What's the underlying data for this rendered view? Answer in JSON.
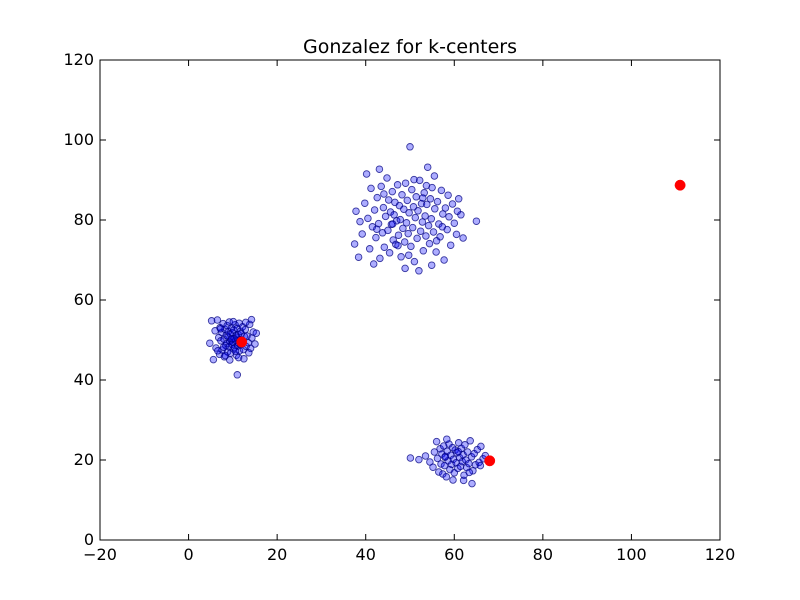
{
  "chart_data": {
    "type": "scatter",
    "title": "Gonzalez for k-centers",
    "xlabel": "",
    "ylabel": "",
    "xlim": [
      -20,
      120
    ],
    "ylim": [
      0,
      120
    ],
    "x_ticks": [
      -20,
      0,
      20,
      40,
      60,
      80,
      100,
      120
    ],
    "y_ticks": [
      0,
      20,
      40,
      60,
      80,
      100,
      120
    ],
    "grid": false,
    "legend": "none",
    "colors": {
      "points": "#0000ff",
      "points_edge": "#000080",
      "centers": "#ff0000"
    },
    "series": [
      {
        "values": [
          [
            4.8,
            49.2
          ],
          [
            5.2,
            54.8
          ],
          [
            5.6,
            45.1
          ],
          [
            6.0,
            52.3
          ],
          [
            6.2,
            48.0
          ],
          [
            6.5,
            55.0
          ],
          [
            6.8,
            50.6
          ],
          [
            7.0,
            46.4
          ],
          [
            7.1,
            53.1
          ],
          [
            7.3,
            49.8
          ],
          [
            7.5,
            51.9
          ],
          [
            7.6,
            47.5
          ],
          [
            7.8,
            54.1
          ],
          [
            8.0,
            50.2
          ],
          [
            8.1,
            45.8
          ],
          [
            8.2,
            52.7
          ],
          [
            8.4,
            48.6
          ],
          [
            8.5,
            51.2
          ],
          [
            8.6,
            49.1
          ],
          [
            8.7,
            53.6
          ],
          [
            8.8,
            47.0
          ],
          [
            8.9,
            50.8
          ],
          [
            9.0,
            52.1
          ],
          [
            9.1,
            48.3
          ],
          [
            9.2,
            54.5
          ],
          [
            9.3,
            49.6
          ],
          [
            9.4,
            51.5
          ],
          [
            9.5,
            46.7
          ],
          [
            9.6,
            50.0
          ],
          [
            9.7,
            53.0
          ],
          [
            9.8,
            48.9
          ],
          [
            9.9,
            51.8
          ],
          [
            10.0,
            49.4
          ],
          [
            10.1,
            47.8
          ],
          [
            10.2,
            52.5
          ],
          [
            10.3,
            50.4
          ],
          [
            10.4,
            48.1
          ],
          [
            10.5,
            53.8
          ],
          [
            10.6,
            49.9
          ],
          [
            10.7,
            51.1
          ],
          [
            10.8,
            46.2
          ],
          [
            10.9,
            50.7
          ],
          [
            11.0,
            52.9
          ],
          [
            11.1,
            48.5
          ],
          [
            11.2,
            51.4
          ],
          [
            11.3,
            49.2
          ],
          [
            11.4,
            54.2
          ],
          [
            11.5,
            47.3
          ],
          [
            11.6,
            50.1
          ],
          [
            11.7,
            52.2
          ],
          [
            11.8,
            48.8
          ],
          [
            11.9,
            51.6
          ],
          [
            12.0,
            49.7
          ],
          [
            12.2,
            53.3
          ],
          [
            12.4,
            47.6
          ],
          [
            12.6,
            50.9
          ],
          [
            12.8,
            52.6
          ],
          [
            13.0,
            48.4
          ],
          [
            13.2,
            51.0
          ],
          [
            13.5,
            49.3
          ],
          [
            13.8,
            53.9
          ],
          [
            14.0,
            47.9
          ],
          [
            14.3,
            50.5
          ],
          [
            14.6,
            52.0
          ],
          [
            15.0,
            49.0
          ],
          [
            15.3,
            51.7
          ],
          [
            11.0,
            41.3
          ],
          [
            12.5,
            45.3
          ],
          [
            9.3,
            45.0
          ],
          [
            14.2,
            55.1
          ],
          [
            7.9,
            48.2
          ],
          [
            8.3,
            46.1
          ],
          [
            10.1,
            54.6
          ],
          [
            11.3,
            45.6
          ],
          [
            12.9,
            54.4
          ],
          [
            13.6,
            46.8
          ],
          [
            6.6,
            47.3
          ],
          [
            7.2,
            52.8
          ],
          [
            9.8,
            50.3
          ],
          [
            10.6,
            47.2
          ],
          [
            37.5,
            74.0
          ],
          [
            37.8,
            82.2
          ],
          [
            38.7,
            79.6
          ],
          [
            39.2,
            76.5
          ],
          [
            39.8,
            84.2
          ],
          [
            40.2,
            91.5
          ],
          [
            40.5,
            80.4
          ],
          [
            40.9,
            72.8
          ],
          [
            41.2,
            87.9
          ],
          [
            41.5,
            78.3
          ],
          [
            41.8,
            69.0
          ],
          [
            42.0,
            82.5
          ],
          [
            42.3,
            75.6
          ],
          [
            42.6,
            85.6
          ],
          [
            42.9,
            79.1
          ],
          [
            43.2,
            70.4
          ],
          [
            43.5,
            88.4
          ],
          [
            43.8,
            76.8
          ],
          [
            44.0,
            83.1
          ],
          [
            44.2,
            73.2
          ],
          [
            44.5,
            80.9
          ],
          [
            44.8,
            90.5
          ],
          [
            45.0,
            77.4
          ],
          [
            45.2,
            85.0
          ],
          [
            45.4,
            71.8
          ],
          [
            45.6,
            82.0
          ],
          [
            45.8,
            78.9
          ],
          [
            46.0,
            87.1
          ],
          [
            46.2,
            75.0
          ],
          [
            46.4,
            81.3
          ],
          [
            46.6,
            84.4
          ],
          [
            46.8,
            73.9
          ],
          [
            47.0,
            79.8
          ],
          [
            47.2,
            88.8
          ],
          [
            47.4,
            76.2
          ],
          [
            47.6,
            83.6
          ],
          [
            47.8,
            80.1
          ],
          [
            48.0,
            70.8
          ],
          [
            48.2,
            86.3
          ],
          [
            48.4,
            77.9
          ],
          [
            48.6,
            82.7
          ],
          [
            48.8,
            74.5
          ],
          [
            49.0,
            89.2
          ],
          [
            49.2,
            79.3
          ],
          [
            49.4,
            84.9
          ],
          [
            49.6,
            76.6
          ],
          [
            49.8,
            81.8
          ],
          [
            50.0,
            98.3
          ],
          [
            50.2,
            73.4
          ],
          [
            50.4,
            87.6
          ],
          [
            50.6,
            78.1
          ],
          [
            50.8,
            83.3
          ],
          [
            51.0,
            69.6
          ],
          [
            51.2,
            80.6
          ],
          [
            51.4,
            85.8
          ],
          [
            51.6,
            75.4
          ],
          [
            51.8,
            82.3
          ],
          [
            52.0,
            67.3
          ],
          [
            52.2,
            89.9
          ],
          [
            52.4,
            77.2
          ],
          [
            52.6,
            84.1
          ],
          [
            52.8,
            79.5
          ],
          [
            53.0,
            72.3
          ],
          [
            53.2,
            86.8
          ],
          [
            53.4,
            81.0
          ],
          [
            53.6,
            76.0
          ],
          [
            53.8,
            83.9
          ],
          [
            54.0,
            93.2
          ],
          [
            54.2,
            78.6
          ],
          [
            54.4,
            74.1
          ],
          [
            54.6,
            85.3
          ],
          [
            54.8,
            80.3
          ],
          [
            55.0,
            88.1
          ],
          [
            55.3,
            77.0
          ],
          [
            55.6,
            82.8
          ],
          [
            55.9,
            72.0
          ],
          [
            56.2,
            84.6
          ],
          [
            56.5,
            79.0
          ],
          [
            56.8,
            75.8
          ],
          [
            57.1,
            87.4
          ],
          [
            57.4,
            81.5
          ],
          [
            57.7,
            70.0
          ],
          [
            58.0,
            83.0
          ],
          [
            58.4,
            77.6
          ],
          [
            58.8,
            80.8
          ],
          [
            59.2,
            73.7
          ],
          [
            59.6,
            84.0
          ],
          [
            60.0,
            79.2
          ],
          [
            60.5,
            76.4
          ],
          [
            61.0,
            85.3
          ],
          [
            61.5,
            81.3
          ],
          [
            62.0,
            75.5
          ],
          [
            65.0,
            79.7
          ],
          [
            38.4,
            70.7
          ],
          [
            43.1,
            92.7
          ],
          [
            55.5,
            91.0
          ],
          [
            47.3,
            73.6
          ],
          [
            52.9,
            85.5
          ],
          [
            49.7,
            71.2
          ],
          [
            57.3,
            78.3
          ],
          [
            54.9,
            68.7
          ],
          [
            44.1,
            86.5
          ],
          [
            50.9,
            90.1
          ],
          [
            56.0,
            74.8
          ],
          [
            46.1,
            79.0
          ],
          [
            53.7,
            88.6
          ],
          [
            42.5,
            77.7
          ],
          [
            58.6,
            86.2
          ],
          [
            48.9,
            67.9
          ],
          [
            60.7,
            82.2
          ],
          [
            50.1,
            20.5
          ],
          [
            52.0,
            20.1
          ],
          [
            53.5,
            21.0
          ],
          [
            54.5,
            19.5
          ],
          [
            55.2,
            18.2
          ],
          [
            55.5,
            22.0
          ],
          [
            56.0,
            24.6
          ],
          [
            56.2,
            20.4
          ],
          [
            56.5,
            17.0
          ],
          [
            56.8,
            22.8
          ],
          [
            57.0,
            19.0
          ],
          [
            57.2,
            21.5
          ],
          [
            57.4,
            16.5
          ],
          [
            57.6,
            23.5
          ],
          [
            57.8,
            18.6
          ],
          [
            58.0,
            20.9
          ],
          [
            58.2,
            15.8
          ],
          [
            58.4,
            22.2
          ],
          [
            58.6,
            19.8
          ],
          [
            58.8,
            24.0
          ],
          [
            59.0,
            17.6
          ],
          [
            59.2,
            21.2
          ],
          [
            59.4,
            18.9
          ],
          [
            59.6,
            23.1
          ],
          [
            59.8,
            20.2
          ],
          [
            60.0,
            16.8
          ],
          [
            60.2,
            22.5
          ],
          [
            60.4,
            19.3
          ],
          [
            60.6,
            21.8
          ],
          [
            60.8,
            17.9
          ],
          [
            61.0,
            24.3
          ],
          [
            61.2,
            20.6
          ],
          [
            61.4,
            18.4
          ],
          [
            61.6,
            22.9
          ],
          [
            61.8,
            19.6
          ],
          [
            62.0,
            21.3
          ],
          [
            62.2,
            16.2
          ],
          [
            62.4,
            23.8
          ],
          [
            62.6,
            20.0
          ],
          [
            62.8,
            18.1
          ],
          [
            63.0,
            22.0
          ],
          [
            63.3,
            19.1
          ],
          [
            63.6,
            24.8
          ],
          [
            63.9,
            20.8
          ],
          [
            64.2,
            17.3
          ],
          [
            64.5,
            21.6
          ],
          [
            64.8,
            18.8
          ],
          [
            65.2,
            22.6
          ],
          [
            65.6,
            19.4
          ],
          [
            66.0,
            23.4
          ],
          [
            66.5,
            20.3
          ],
          [
            67.0,
            21.1
          ],
          [
            58.3,
            25.2
          ],
          [
            59.7,
            15.0
          ],
          [
            62.1,
            14.9
          ],
          [
            64.0,
            14.1
          ],
          [
            60.9,
            22.1
          ],
          [
            57.9,
            20.7
          ],
          [
            63.4,
            16.9
          ],
          [
            65.9,
            18.6
          ]
        ]
      }
    ],
    "centers": [
      [
        12.0,
        49.5
      ],
      [
        68.0,
        19.8
      ],
      [
        111.0,
        88.7
      ]
    ]
  }
}
